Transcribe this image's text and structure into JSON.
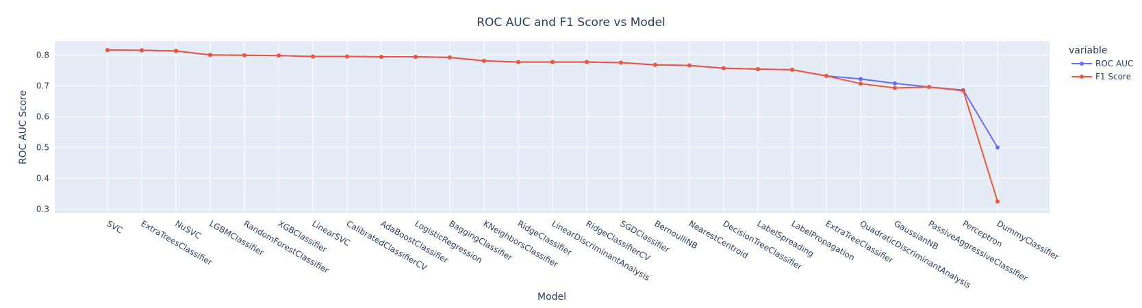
{
  "chart_data": {
    "type": "line",
    "title": "ROC AUC and F1 Score vs Model",
    "xlabel": "Model",
    "ylabel": "ROC AUC Score",
    "ylim": [
      0.288,
      0.845
    ],
    "yticks": [
      "0.3",
      "0.4",
      "0.5",
      "0.6",
      "0.7",
      "0.8"
    ],
    "grid": true,
    "legend": {
      "title": "variable",
      "placement": "top-right"
    },
    "categories": [
      "SVC",
      "ExtraTreesClassifier",
      "NuSVC",
      "LGBMClassifier",
      "RandomForestClassifier",
      "XGBClassifier",
      "LinearSVC",
      "CalibratedClassifierCV",
      "AdaBoostClassifier",
      "LogisticRegression",
      "BaggingClassifier",
      "KNeighborsClassifier",
      "RidgeClassifier",
      "LinearDiscriminantAnalysis",
      "RidgeClassifierCV",
      "SGDClassifier",
      "BernoulliNB",
      "NearestCentroid",
      "DecisionTreeClassifier",
      "LabelSpreading",
      "LabelPropagation",
      "ExtraTreeClassifier",
      "QuadraticDiscriminantAnalysis",
      "GaussianNB",
      "PassiveAggressiveClassifier",
      "Perceptron",
      "DummyClassifier"
    ],
    "series": [
      {
        "name": "ROC AUC",
        "color": "#636efa",
        "values": [
          0.816,
          0.815,
          0.813,
          0.8,
          0.799,
          0.798,
          0.795,
          0.795,
          0.794,
          0.794,
          0.792,
          0.781,
          0.777,
          0.777,
          0.777,
          0.775,
          0.768,
          0.766,
          0.757,
          0.754,
          0.752,
          0.732,
          0.722,
          0.708,
          0.696,
          0.686,
          0.5
        ]
      },
      {
        "name": "F1 Score",
        "color": "#ef553b",
        "values": [
          0.816,
          0.815,
          0.813,
          0.8,
          0.799,
          0.798,
          0.795,
          0.795,
          0.794,
          0.794,
          0.792,
          0.781,
          0.777,
          0.777,
          0.777,
          0.775,
          0.768,
          0.766,
          0.757,
          0.754,
          0.752,
          0.732,
          0.707,
          0.693,
          0.696,
          0.684,
          0.325
        ]
      }
    ]
  }
}
